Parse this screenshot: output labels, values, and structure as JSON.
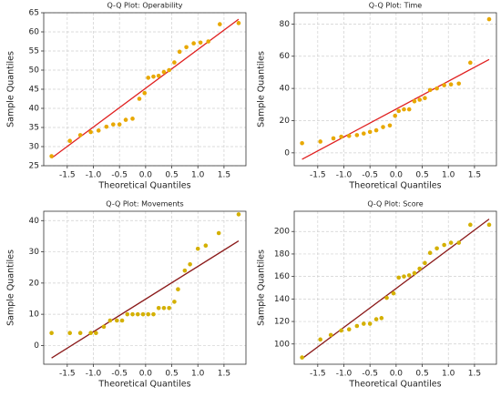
{
  "chart_data": [
    {
      "type": "scatter",
      "title": "Q-Q Plot: Operability",
      "xlabel": "Theoretical Quantiles",
      "ylabel": "Sample Quantiles",
      "x": [
        -1.8,
        -1.45,
        -1.25,
        -1.05,
        -0.9,
        -0.75,
        -0.62,
        -0.5,
        -0.38,
        -0.25,
        -0.12,
        -0.02,
        0.05,
        0.15,
        0.25,
        0.35,
        0.45,
        0.55,
        0.65,
        0.78,
        0.92,
        1.05,
        1.2,
        1.42,
        1.78
      ],
      "y": [
        27.5,
        31.5,
        33,
        33.8,
        34.2,
        35.2,
        35.8,
        35.8,
        37,
        37.3,
        42.5,
        44,
        48,
        48.3,
        48.5,
        49.5,
        50,
        52,
        54.8,
        56,
        57,
        57.2,
        57.5,
        62,
        62.3
      ],
      "fit_x": [
        -1.8,
        1.78
      ],
      "fit_y": [
        27,
        63.3
      ],
      "color": "#e8a800",
      "line_color": "#e02020",
      "xlim": [
        -1.95,
        1.92
      ],
      "ylim": [
        25,
        65
      ],
      "xticks": [
        -1.5,
        {
          "value": -1,
          "label": "-1.0"
        },
        -0.5,
        {
          "value": 0,
          "label": "0.0"
        },
        0.5,
        {
          "value": 1,
          "label": "1.0"
        },
        1.5
      ],
      "yticks": [
        25,
        30,
        35,
        40,
        45,
        50,
        55,
        60,
        65
      ],
      "grid": true
    },
    {
      "type": "scatter",
      "title": "Q-Q Plot: Time",
      "xlabel": "Theoretical Quantiles",
      "ylabel": "Sample Quantiles",
      "x": [
        -1.8,
        -1.45,
        -1.2,
        -1.05,
        -0.9,
        -0.75,
        -0.62,
        -0.5,
        -0.38,
        -0.25,
        -0.12,
        -0.02,
        0.05,
        0.15,
        0.25,
        0.35,
        0.45,
        0.55,
        0.65,
        0.78,
        0.92,
        1.05,
        1.2,
        1.42,
        1.78
      ],
      "y": [
        6,
        7,
        9,
        10,
        10.5,
        11,
        12,
        13,
        14,
        16,
        17,
        23,
        26,
        27,
        27,
        32,
        33,
        34,
        39,
        40,
        42,
        42.5,
        43,
        56,
        83
      ],
      "fit_x": [
        -1.8,
        1.78
      ],
      "fit_y": [
        -4,
        58
      ],
      "color": "#e8a800",
      "line_color": "#e02020",
      "xlim": [
        -1.95,
        1.92
      ],
      "ylim": [
        -8,
        87
      ],
      "xticks": [
        -1.5,
        {
          "value": -1,
          "label": "-1.0"
        },
        -0.5,
        {
          "value": 0,
          "label": "0.0"
        },
        0.5,
        {
          "value": 1,
          "label": "1.0"
        },
        1.5
      ],
      "yticks": [
        0,
        20,
        40,
        60,
        80
      ],
      "grid": true
    },
    {
      "type": "scatter",
      "title": "Q-Q Plot: Movements",
      "xlabel": "Theoretical Quantiles",
      "ylabel": "Sample Quantiles",
      "x": [
        -1.8,
        -1.45,
        -1.25,
        -1.05,
        -0.95,
        -0.8,
        -0.68,
        -0.55,
        -0.45,
        -0.35,
        -0.25,
        -0.15,
        -0.05,
        0.05,
        0.15,
        0.25,
        0.35,
        0.45,
        0.55,
        0.62,
        0.75,
        0.85,
        1.0,
        1.15,
        1.4,
        1.78
      ],
      "y": [
        4,
        4,
        4,
        4,
        4,
        6,
        8,
        8,
        8,
        10,
        10,
        10,
        10,
        10,
        10,
        12,
        12,
        12,
        14,
        18,
        24,
        26,
        31,
        32,
        36,
        42
      ],
      "fit_x": [
        -1.8,
        1.78
      ],
      "fit_y": [
        -4,
        33.5
      ],
      "color": "#d4b000",
      "line_color": "#8b1a1a",
      "xlim": [
        -1.95,
        1.92
      ],
      "ylim": [
        -6,
        43
      ],
      "xticks": [
        -1.5,
        {
          "value": -1,
          "label": "-1.0"
        },
        -0.5,
        {
          "value": 0,
          "label": "0.0"
        },
        0.5,
        {
          "value": 1,
          "label": "1.0"
        },
        1.5
      ],
      "yticks": [
        0,
        10,
        20,
        30,
        40
      ],
      "grid": true
    },
    {
      "type": "scatter",
      "title": "Q-Q Plot: Score",
      "xlabel": "Theoretical Quantiles",
      "ylabel": "Sample Quantiles",
      "x": [
        -1.8,
        -1.45,
        -1.25,
        -1.05,
        -0.9,
        -0.75,
        -0.62,
        -0.5,
        -0.38,
        -0.28,
        -0.18,
        -0.05,
        0.05,
        0.15,
        0.25,
        0.35,
        0.45,
        0.55,
        0.65,
        0.78,
        0.92,
        1.05,
        1.2,
        1.42,
        1.78
      ],
      "y": [
        88,
        104,
        108,
        112,
        113,
        116,
        118,
        118,
        122,
        123,
        141,
        145,
        159,
        160,
        161,
        163,
        167,
        172,
        181,
        185,
        188,
        190,
        190,
        206,
        206
      ],
      "fit_x": [
        -1.8,
        1.78
      ],
      "fit_y": [
        87,
        211
      ],
      "color": "#d4b000",
      "line_color": "#8b1a1a",
      "xlim": [
        -1.95,
        1.92
      ],
      "ylim": [
        82,
        218
      ],
      "xticks": [
        -1.5,
        {
          "value": -1,
          "label": "-1.0"
        },
        -0.5,
        {
          "value": 0,
          "label": "0.0"
        },
        0.5,
        {
          "value": 1,
          "label": "1.0"
        },
        1.5
      ],
      "yticks": [
        100,
        120,
        140,
        160,
        180,
        200
      ],
      "grid": true
    }
  ]
}
